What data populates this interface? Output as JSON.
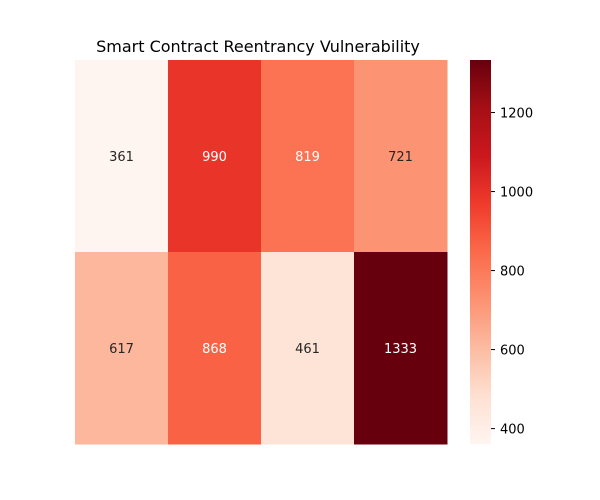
{
  "chart_data": {
    "type": "heatmap",
    "title": "Smart Contract Reentrancy Vulnerability",
    "xlabel": "",
    "ylabel": "",
    "rows": 2,
    "cols": 4,
    "values": [
      [
        361,
        990,
        819,
        721
      ],
      [
        617,
        868,
        461,
        1333
      ]
    ],
    "colormap": "Reds",
    "colorbar": {
      "vmin": 361,
      "vmax": 1333,
      "ticks": [
        400,
        600,
        800,
        1000,
        1200
      ]
    }
  }
}
